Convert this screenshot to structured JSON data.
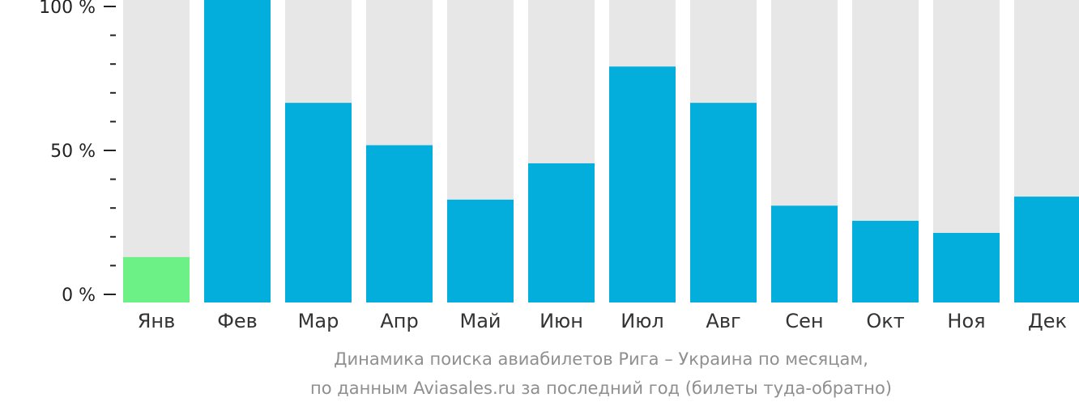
{
  "chart_data": {
    "type": "bar",
    "categories": [
      "Янв",
      "Фев",
      "Мар",
      "Апр",
      "Май",
      "Июн",
      "Июл",
      "Авг",
      "Сен",
      "Окт",
      "Ноя",
      "Дек"
    ],
    "values": [
      15,
      100,
      66,
      52,
      34,
      46,
      78,
      66,
      32,
      27,
      23,
      35
    ],
    "highlight_index": 0,
    "ylim": [
      0,
      100
    ],
    "yticks": [
      {
        "value": 0,
        "label": "0 %"
      },
      {
        "value": 50,
        "label": "50 %"
      },
      {
        "value": 100,
        "label": "100 %"
      }
    ],
    "minor_ticks": [
      10,
      20,
      30,
      40,
      60,
      70,
      80,
      90
    ],
    "title": "",
    "xlabel": "",
    "ylabel": "",
    "grid": false,
    "colors": {
      "bar": "#03aedd",
      "highlight": "#6cf187",
      "track": "#e7e7e7",
      "axis": "#222222"
    }
  },
  "caption": {
    "line1": "Динамика поиска авиабилетов Рига – Украина по месяцам,",
    "line2": "по данным Aviasales.ru за последний год (билеты туда-обратно)"
  }
}
